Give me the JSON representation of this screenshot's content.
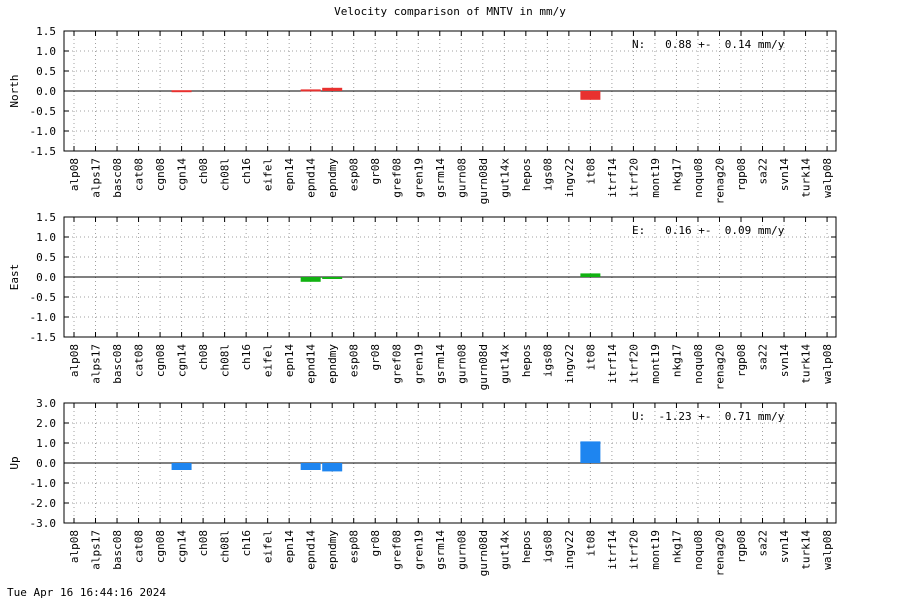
{
  "title": "Velocity comparison of MNTV in mm/y",
  "footer": "Tue Apr 16 16:44:16 2024",
  "chart_data": [
    {
      "type": "bar",
      "ylabel": "North",
      "ylim": [
        -1.5,
        1.5
      ],
      "yticks": [
        "1.5",
        "1.0",
        "0.5",
        "0.0",
        "-0.5",
        "-1.0",
        "-1.5"
      ],
      "annotation": "N:   0.88 +-  0.14 mm/y",
      "color": "#e8312f",
      "grid": true,
      "categories": [
        "alp08",
        "alps17",
        "basc08",
        "cat08",
        "cgn08",
        "cgn14",
        "ch08",
        "ch08l",
        "ch16",
        "eifel",
        "epn14",
        "epnd14",
        "epndmy",
        "esp08",
        "gr08",
        "gref08",
        "gren19",
        "gsrm14",
        "gurn08",
        "gurn08d",
        "gut14x",
        "hepos",
        "igs08",
        "ingv22",
        "it08",
        "itrf14",
        "itrf20",
        "mont19",
        "nkg17",
        "noqu08",
        "renag20",
        "rgp08",
        "sa22",
        "svn14",
        "turk14",
        "walp08"
      ],
      "values": [
        0,
        0,
        0,
        0,
        0,
        0.02,
        0,
        0,
        0,
        0,
        0,
        0.04,
        0.08,
        0,
        0,
        0,
        0,
        0,
        0,
        0,
        0,
        0,
        0,
        0,
        -0.22,
        0,
        0,
        0,
        0,
        0,
        0,
        0,
        0,
        0,
        0,
        0
      ]
    },
    {
      "type": "bar",
      "ylabel": "East",
      "ylim": [
        -1.5,
        1.5
      ],
      "yticks": [
        "1.5",
        "1.0",
        "0.5",
        "0.0",
        "-0.5",
        "-1.0",
        "-1.5"
      ],
      "annotation": "E:   0.16 +-  0.09 mm/y",
      "color": "#12b212",
      "grid": true,
      "categories": [
        "alp08",
        "alps17",
        "basc08",
        "cat08",
        "cgn08",
        "cgn14",
        "ch08",
        "ch08l",
        "ch16",
        "eifel",
        "epn14",
        "epnd14",
        "epndmy",
        "esp08",
        "gr08",
        "gref08",
        "gren19",
        "gsrm14",
        "gurn08",
        "gurn08d",
        "gut14x",
        "hepos",
        "igs08",
        "ingv22",
        "it08",
        "itrf14",
        "itrf20",
        "mont19",
        "nkg17",
        "noqu08",
        "renag20",
        "rgp08",
        "sa22",
        "svn14",
        "turk14",
        "walp08"
      ],
      "values": [
        0,
        0,
        0,
        0,
        0,
        0,
        0,
        0,
        0,
        0,
        0,
        -0.12,
        -0.03,
        0,
        0,
        0,
        0,
        0,
        0,
        0,
        0,
        0,
        0,
        0,
        0.09,
        0,
        0,
        0,
        0,
        0,
        0,
        0,
        0,
        0,
        0,
        0
      ]
    },
    {
      "type": "bar",
      "ylabel": "Up",
      "ylim": [
        -3.0,
        3.0
      ],
      "yticks": [
        "3.0",
        "2.0",
        "1.0",
        "0.0",
        "-1.0",
        "-2.0",
        "-3.0"
      ],
      "annotation": "U:  -1.23 +-  0.71 mm/y",
      "color": "#1e85f0",
      "grid": true,
      "categories": [
        "alp08",
        "alps17",
        "basc08",
        "cat08",
        "cgn08",
        "cgn14",
        "ch08",
        "ch08l",
        "ch16",
        "eifel",
        "epn14",
        "epnd14",
        "epndmy",
        "esp08",
        "gr08",
        "gref08",
        "gren19",
        "gsrm14",
        "gurn08",
        "gurn08d",
        "gut14x",
        "hepos",
        "igs08",
        "ingv22",
        "it08",
        "itrf14",
        "itrf20",
        "mont19",
        "nkg17",
        "noqu08",
        "renag20",
        "rgp08",
        "sa22",
        "svn14",
        "turk14",
        "walp08"
      ],
      "values": [
        0,
        0,
        0,
        0,
        0,
        -0.35,
        0,
        0,
        0,
        0,
        0,
        -0.35,
        -0.42,
        0,
        0,
        0,
        0,
        0,
        0,
        0,
        0,
        0,
        0,
        0,
        1.08,
        0,
        0,
        0,
        0,
        0,
        0,
        0,
        0,
        0,
        0,
        0
      ]
    }
  ]
}
